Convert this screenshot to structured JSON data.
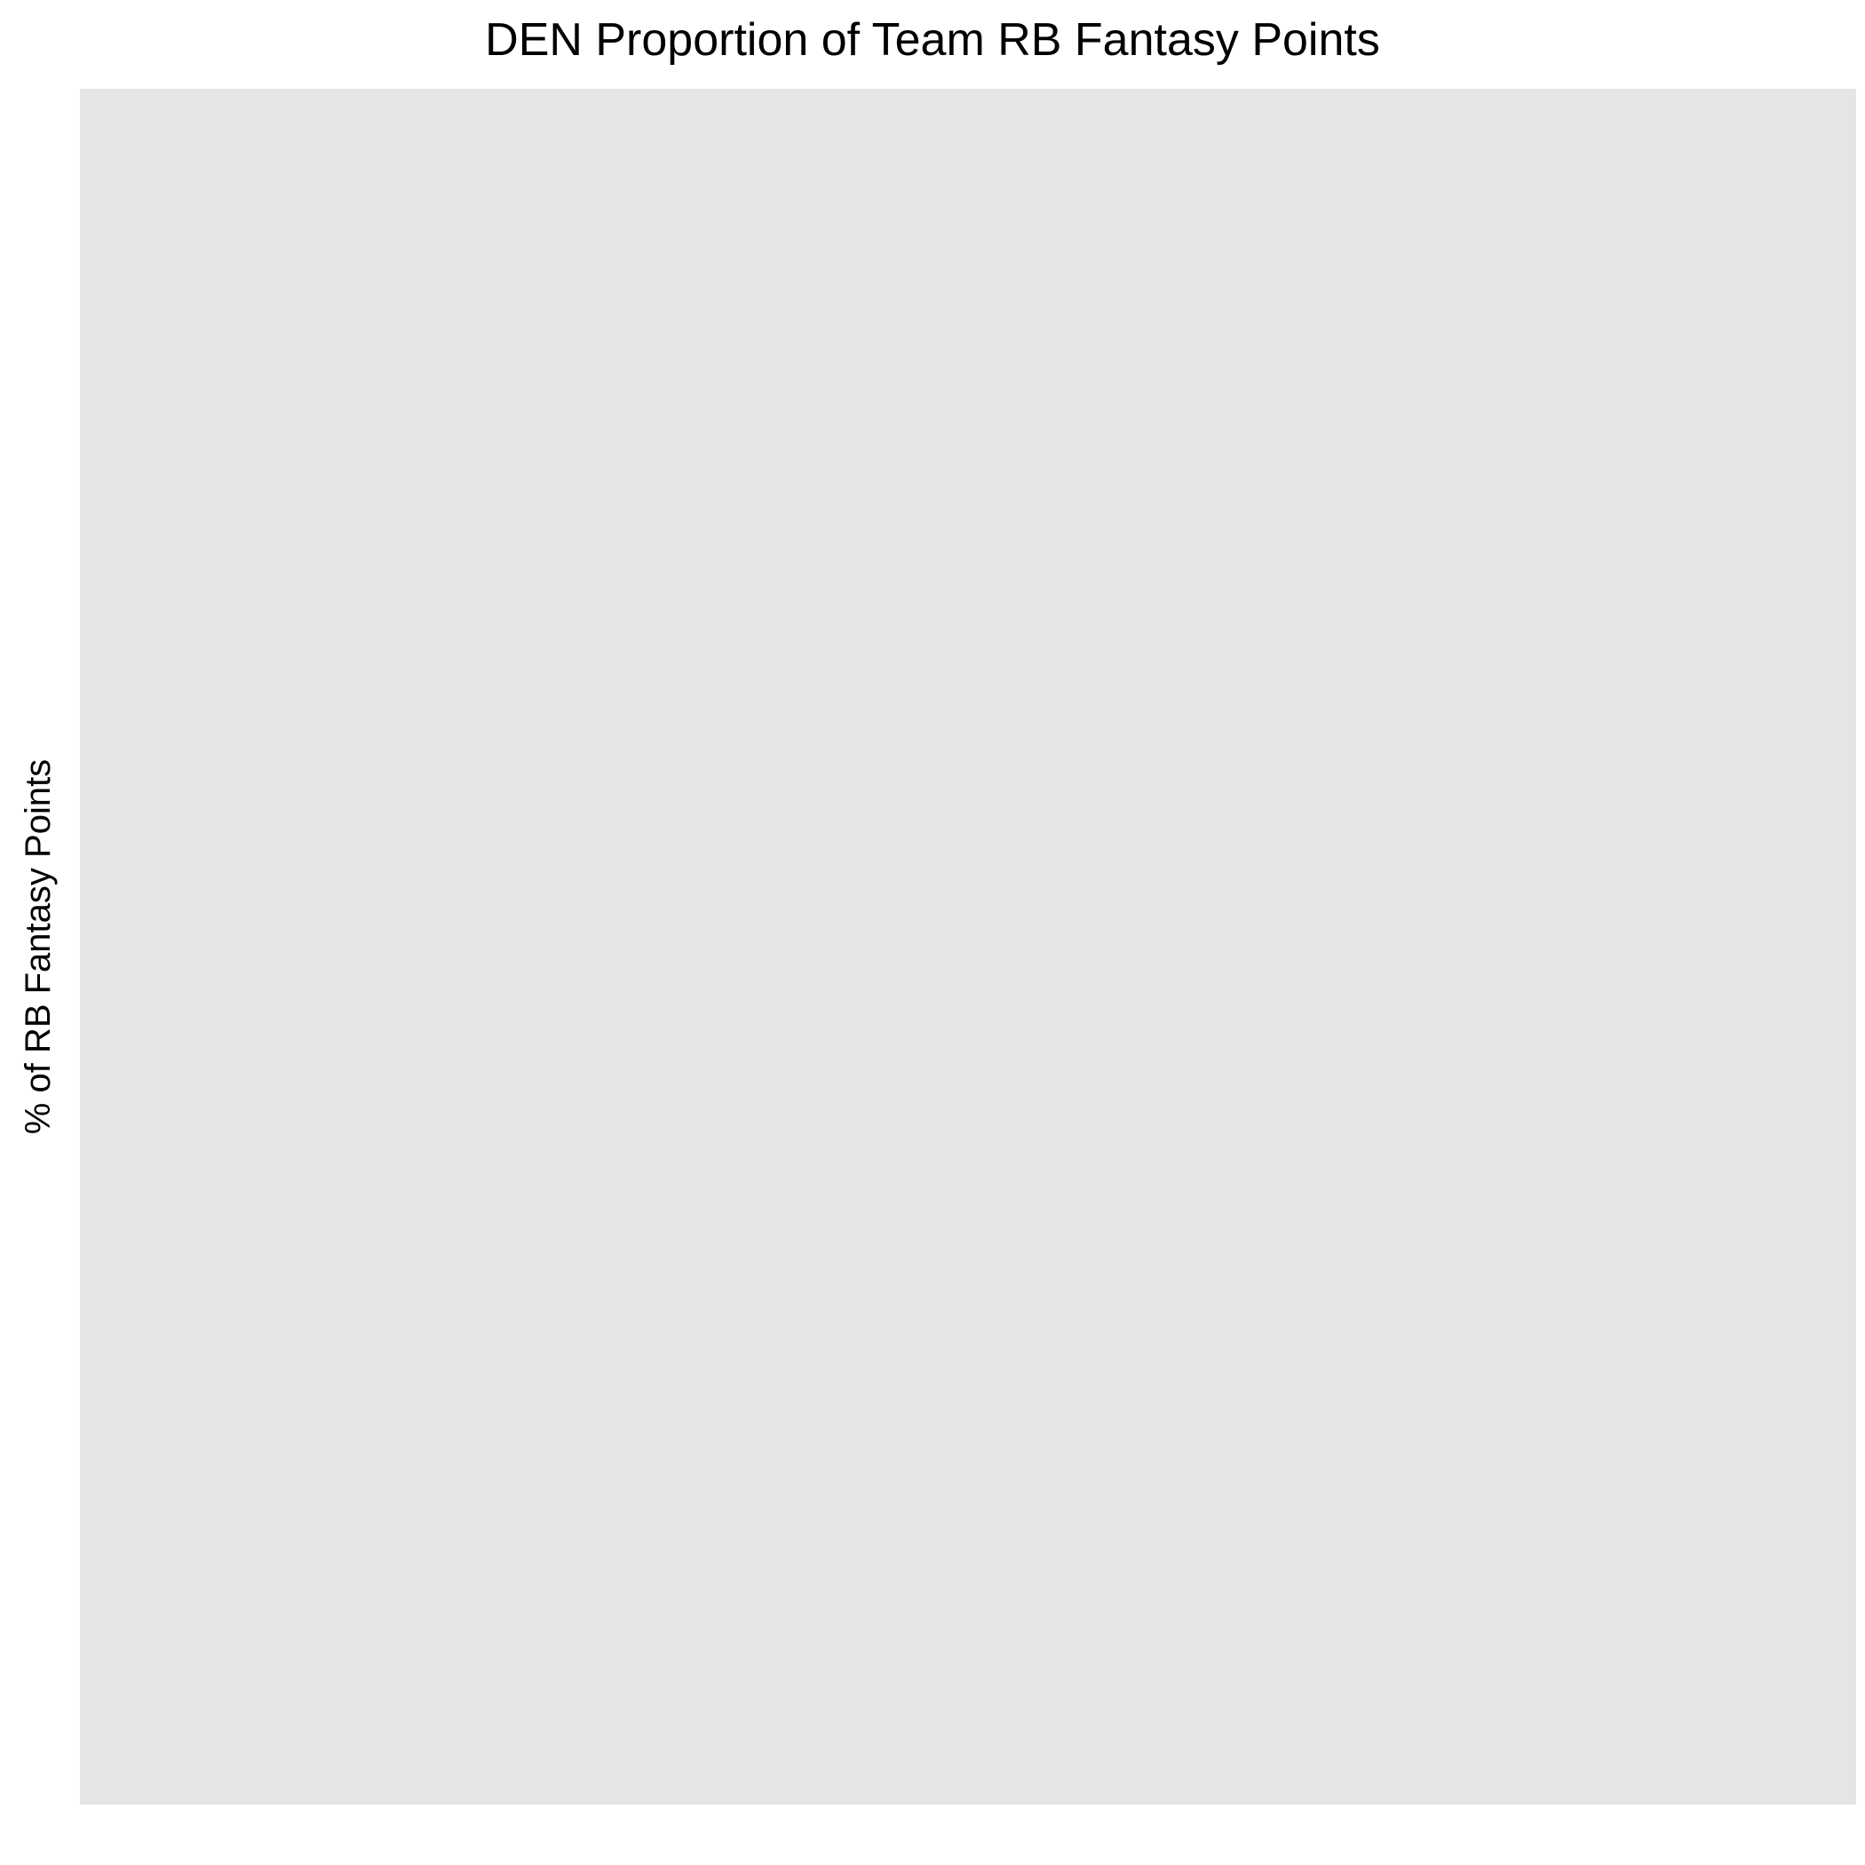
{
  "chart_data": {
    "type": "bar",
    "title": "DEN Proportion of Team RB Fantasy Points",
    "xlabel": "",
    "ylabel": "% of RB Fantasy Points",
    "categories": [],
    "series": [],
    "grid": false,
    "legend": "none",
    "panel_color": "#e5e5e5"
  }
}
